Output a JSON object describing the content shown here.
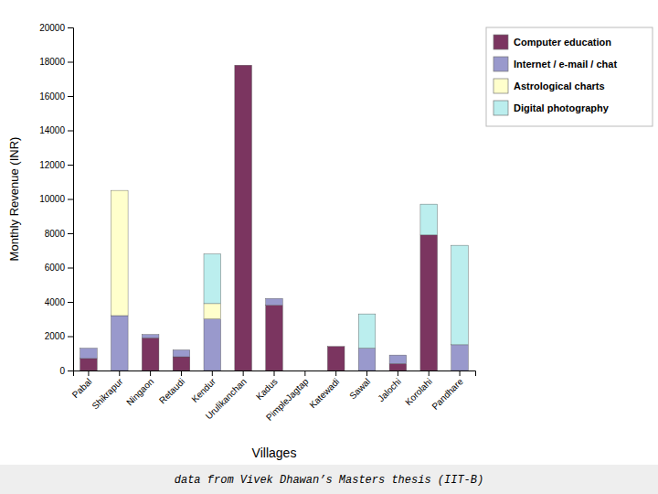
{
  "chart_data": {
    "type": "bar",
    "stacked": true,
    "x_label": "Villages",
    "y_label": "Monthly Revenue (INR)",
    "annotations": [
      "data from Vivek Dhawan’s Masters thesis (IIT-B)"
    ],
    "categories": [
      "Pabal",
      "Shikrapur",
      "Ningaon",
      "Retaudi",
      "Kendur",
      "Urulikanchan",
      "Kadus",
      "PimpleJagtap",
      "Katewadi",
      "Sawal",
      "Jalochi",
      "Korolahi",
      "Pandhare"
    ],
    "series": [
      {
        "name": "Computer education",
        "color": "#7B3560",
        "values": [
          700,
          0,
          1900,
          800,
          0,
          17800,
          3800,
          0,
          1400,
          0,
          400,
          7900,
          0
        ]
      },
      {
        "name": "Internet / e-mail / chat",
        "color": "#9999CC",
        "values": [
          600,
          3200,
          200,
          400,
          3000,
          0,
          400,
          0,
          0,
          1300,
          500,
          0,
          1500
        ]
      },
      {
        "name": "Astrological charts",
        "color": "#FFFFCC",
        "values": [
          0,
          7300,
          0,
          0,
          900,
          0,
          0,
          0,
          0,
          0,
          0,
          0,
          0
        ]
      },
      {
        "name": "Digital photography",
        "color": "#BBEEEE",
        "values": [
          0,
          0,
          0,
          0,
          2900,
          0,
          0,
          0,
          0,
          2000,
          0,
          1800,
          5800
        ]
      }
    ],
    "ylim": [
      0,
      20000
    ],
    "yticks": [
      0,
      2000,
      4000,
      6000,
      8000,
      10000,
      12000,
      14000,
      16000,
      18000,
      20000
    ],
    "grid": false,
    "legend": "upper right"
  }
}
